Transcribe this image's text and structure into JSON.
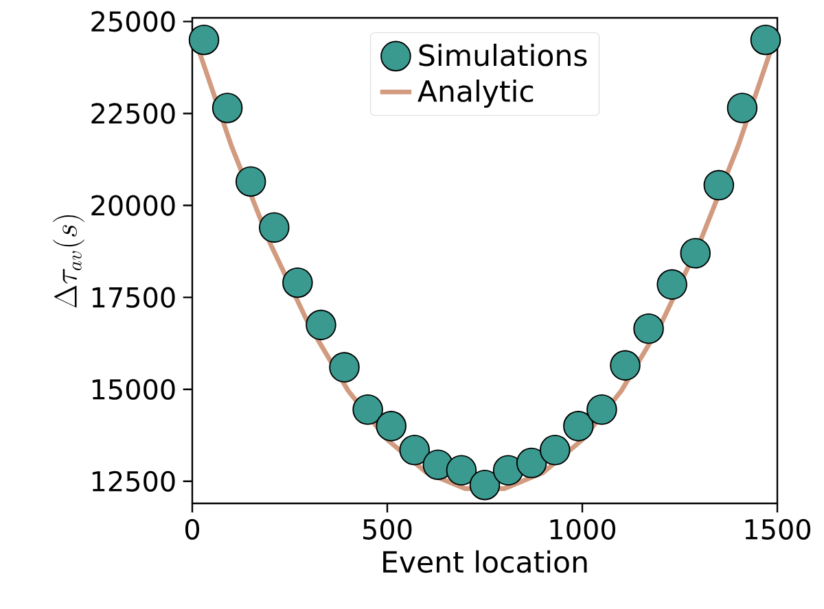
{
  "chart_data": {
    "type": "scatter",
    "xlabel": "Event location",
    "ylabel": "\\Delta\\tau_{av}(s)",
    "xlim": [
      0,
      1500
    ],
    "ylim": [
      11900,
      25100
    ],
    "xticks": [
      0,
      500,
      1000,
      1500
    ],
    "yticks": [
      12500,
      15000,
      17500,
      20000,
      22500,
      25000
    ],
    "legend": "top",
    "grid": false,
    "series": [
      {
        "name": "Simulations",
        "marker": "circle",
        "color": "#3a9a8f",
        "x": [
          30,
          90,
          150,
          210,
          270,
          330,
          390,
          450,
          510,
          570,
          630,
          690,
          750,
          810,
          870,
          930,
          990,
          1050,
          1110,
          1170,
          1230,
          1290,
          1350,
          1410,
          1470
        ],
        "values": [
          24500,
          22650,
          20650,
          19400,
          17900,
          16750,
          15600,
          14450,
          14000,
          13350,
          12950,
          12800,
          12400,
          12800,
          13000,
          13350,
          14000,
          14450,
          15650,
          16650,
          17850,
          18700,
          20550,
          22650,
          24500
        ]
      },
      {
        "name": "Analytic",
        "type": "line",
        "marker": "none",
        "line_style": "solid",
        "color": "#d29b80",
        "x": [
          0,
          100,
          200,
          300,
          400,
          500,
          600,
          700,
          800,
          900,
          1000,
          1100,
          1200,
          1300,
          1400,
          1500
        ],
        "values": [
          24740,
          21630,
          18960,
          16740,
          14960,
          13630,
          12740,
          12300,
          12300,
          12740,
          13630,
          14960,
          16740,
          18960,
          21630,
          24740
        ]
      }
    ]
  }
}
